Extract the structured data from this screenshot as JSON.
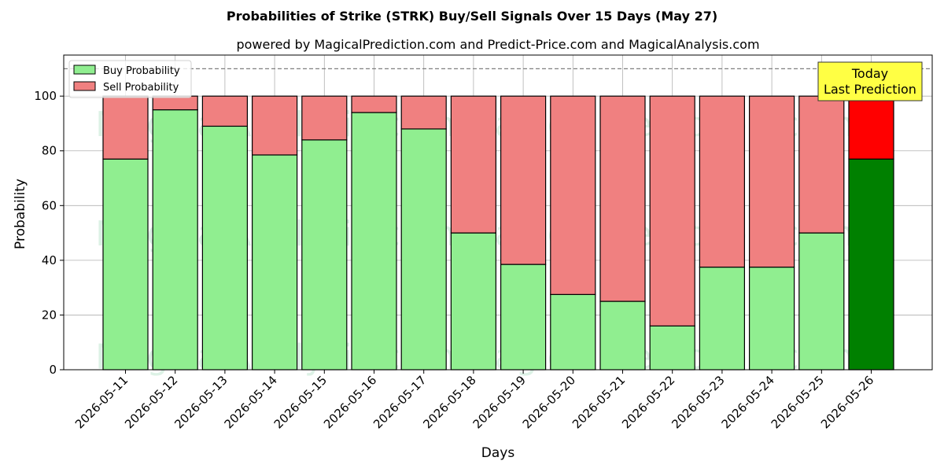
{
  "chart_data": {
    "type": "bar",
    "stacked": true,
    "title": "Probabilities of Strike (STRK) Buy/Sell Signals Over 15 Days (May 27)",
    "subtitle": "powered by MagicalPrediction.com and Predict-Price.com and MagicalAnalysis.com",
    "xlabel": "Days",
    "ylabel": "Probability",
    "ylim": [
      0,
      115
    ],
    "yticks": [
      0,
      20,
      40,
      60,
      80,
      100
    ],
    "grid": true,
    "legend_position": "upper left",
    "reference_line": 110,
    "categories": [
      "2026-05-11",
      "2026-05-12",
      "2026-05-13",
      "2026-05-14",
      "2026-05-15",
      "2026-05-16",
      "2026-05-17",
      "2026-05-18",
      "2026-05-19",
      "2026-05-20",
      "2026-05-21",
      "2026-05-22",
      "2026-05-23",
      "2026-05-24",
      "2026-05-25",
      "2026-05-26"
    ],
    "series": [
      {
        "name": "Buy Probability",
        "color": "#90ee90",
        "edge": "#000000",
        "values": [
          77,
          95,
          89,
          78.5,
          84,
          94,
          88,
          50,
          38.5,
          27.5,
          25,
          16,
          37.5,
          37.5,
          50,
          77
        ]
      },
      {
        "name": "Sell Probability",
        "color": "#f08080",
        "edge": "#000000",
        "values": [
          23,
          5,
          11,
          21.5,
          16,
          6,
          12,
          50,
          61.5,
          72.5,
          75,
          84,
          62.5,
          62.5,
          50,
          23
        ]
      }
    ],
    "highlight": {
      "index": 15,
      "buy_color": "#008000",
      "sell_color": "#ff0000"
    },
    "annotation": {
      "lines": [
        "Today",
        "Last Prediction"
      ],
      "bg": "#ffff44"
    },
    "watermarks": [
      "MagicalAnalysis.com",
      "MagicalPrediction.com"
    ]
  }
}
